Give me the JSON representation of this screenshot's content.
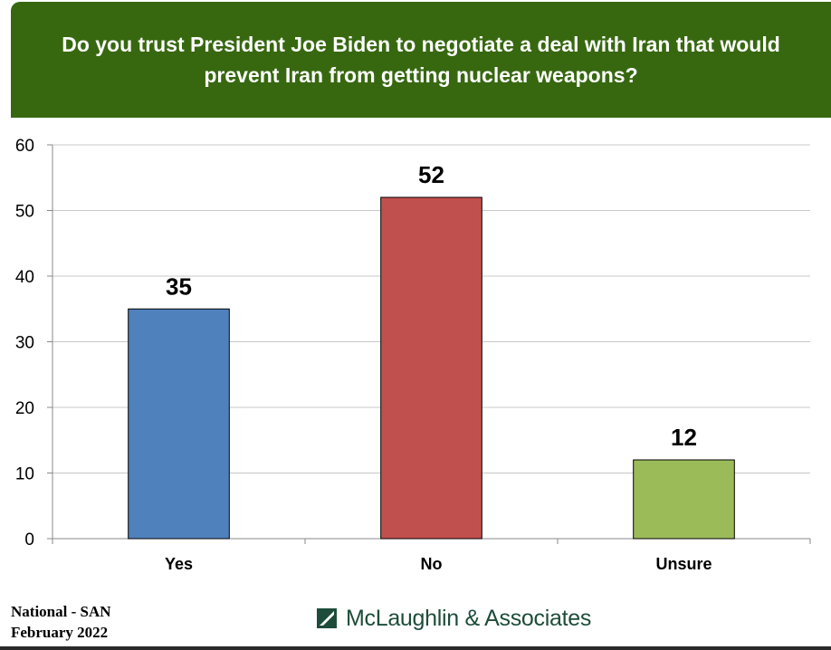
{
  "chart_data": {
    "type": "bar",
    "title": "Do you trust President Joe Biden to negotiate a deal with Iran that would prevent Iran from getting nuclear weapons?",
    "categories": [
      "Yes",
      "No",
      "Unsure"
    ],
    "values": [
      35,
      52,
      12
    ],
    "data_labels": [
      "35",
      "52",
      "12"
    ],
    "colors": [
      "#4f81bd",
      "#c0504d",
      "#9bbb59"
    ],
    "ylim": [
      0,
      60
    ],
    "yticks": [
      0,
      10,
      20,
      30,
      40,
      50,
      60
    ],
    "xlabel": "",
    "ylabel": "",
    "grid": true
  },
  "footer": {
    "line1": "National - SAN",
    "line2": "February 2022"
  },
  "logo": {
    "text": "McLaughlin & Associates",
    "color": "#1d4d3a"
  },
  "theme": {
    "banner_color": "#376810"
  }
}
